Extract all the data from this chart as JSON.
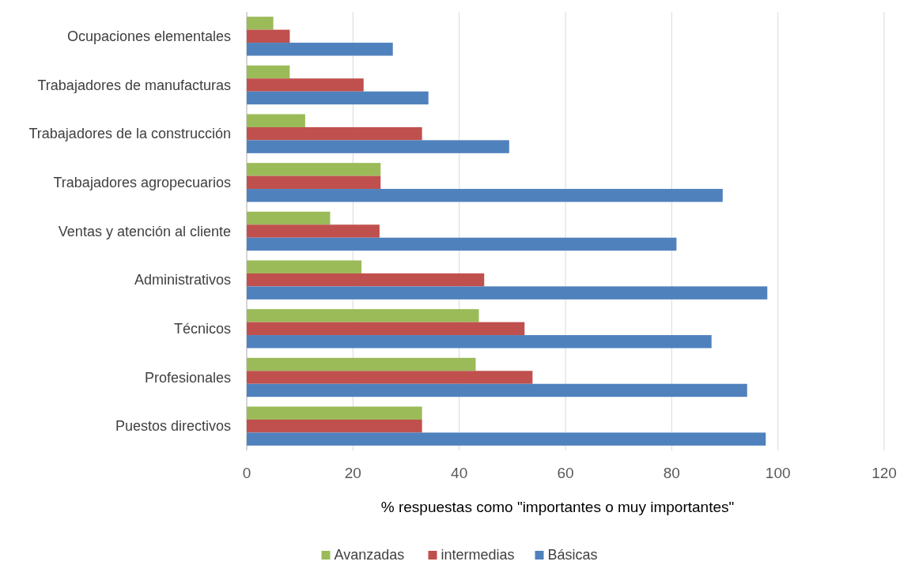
{
  "chart_data": {
    "type": "bar",
    "orientation": "horizontal",
    "xlabel": "% respuestas como \"importantes o muy importantes\"",
    "categories": [
      "Ocupaciones elementales",
      "Trabajadores de manufacturas",
      "Trabajadores de la construcción",
      "Trabajadores agropecuarios",
      "Ventas y atención al cliente",
      "Administrativos",
      "Técnicos",
      "Profesionales",
      "Puestos directivos"
    ],
    "series": [
      {
        "name": "Avanzadas",
        "color": "#9bbb59",
        "values": [
          5.0,
          8.1,
          11.0,
          25.2,
          15.7,
          21.6,
          43.7,
          43.1,
          33.0
        ]
      },
      {
        "name": "intermedias",
        "color": "#c0504d",
        "values": [
          8.1,
          22.0,
          33.0,
          25.2,
          25.0,
          44.7,
          52.3,
          53.8,
          33.0
        ]
      },
      {
        "name": "Básicas",
        "color": "#4f81bd",
        "values": [
          27.5,
          34.2,
          49.4,
          89.6,
          80.9,
          98.0,
          87.5,
          94.2,
          97.7
        ]
      }
    ],
    "xlim": [
      0,
      120
    ],
    "xticks": [
      0,
      20,
      40,
      60,
      80,
      100,
      120
    ],
    "grid": "x",
    "legend": "bottom"
  }
}
